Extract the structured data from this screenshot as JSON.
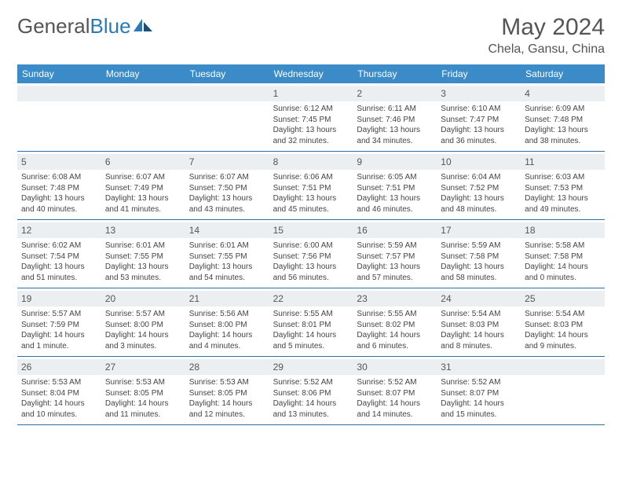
{
  "logo": {
    "text1": "General",
    "text2": "Blue"
  },
  "header": {
    "month": "May 2024",
    "location": "Chela, Gansu, China"
  },
  "colors": {
    "header_bg": "#3b8bc9",
    "header_text": "#ffffff",
    "daynum_bg": "#eceff1",
    "week_border": "#2b6fa3",
    "text": "#444444"
  },
  "dayNames": [
    "Sunday",
    "Monday",
    "Tuesday",
    "Wednesday",
    "Thursday",
    "Friday",
    "Saturday"
  ],
  "weeks": [
    [
      {
        "n": "",
        "lines": []
      },
      {
        "n": "",
        "lines": []
      },
      {
        "n": "",
        "lines": []
      },
      {
        "n": "1",
        "lines": [
          "Sunrise: 6:12 AM",
          "Sunset: 7:45 PM",
          "Daylight: 13 hours and 32 minutes."
        ]
      },
      {
        "n": "2",
        "lines": [
          "Sunrise: 6:11 AM",
          "Sunset: 7:46 PM",
          "Daylight: 13 hours and 34 minutes."
        ]
      },
      {
        "n": "3",
        "lines": [
          "Sunrise: 6:10 AM",
          "Sunset: 7:47 PM",
          "Daylight: 13 hours and 36 minutes."
        ]
      },
      {
        "n": "4",
        "lines": [
          "Sunrise: 6:09 AM",
          "Sunset: 7:48 PM",
          "Daylight: 13 hours and 38 minutes."
        ]
      }
    ],
    [
      {
        "n": "5",
        "lines": [
          "Sunrise: 6:08 AM",
          "Sunset: 7:48 PM",
          "Daylight: 13 hours and 40 minutes."
        ]
      },
      {
        "n": "6",
        "lines": [
          "Sunrise: 6:07 AM",
          "Sunset: 7:49 PM",
          "Daylight: 13 hours and 41 minutes."
        ]
      },
      {
        "n": "7",
        "lines": [
          "Sunrise: 6:07 AM",
          "Sunset: 7:50 PM",
          "Daylight: 13 hours and 43 minutes."
        ]
      },
      {
        "n": "8",
        "lines": [
          "Sunrise: 6:06 AM",
          "Sunset: 7:51 PM",
          "Daylight: 13 hours and 45 minutes."
        ]
      },
      {
        "n": "9",
        "lines": [
          "Sunrise: 6:05 AM",
          "Sunset: 7:51 PM",
          "Daylight: 13 hours and 46 minutes."
        ]
      },
      {
        "n": "10",
        "lines": [
          "Sunrise: 6:04 AM",
          "Sunset: 7:52 PM",
          "Daylight: 13 hours and 48 minutes."
        ]
      },
      {
        "n": "11",
        "lines": [
          "Sunrise: 6:03 AM",
          "Sunset: 7:53 PM",
          "Daylight: 13 hours and 49 minutes."
        ]
      }
    ],
    [
      {
        "n": "12",
        "lines": [
          "Sunrise: 6:02 AM",
          "Sunset: 7:54 PM",
          "Daylight: 13 hours and 51 minutes."
        ]
      },
      {
        "n": "13",
        "lines": [
          "Sunrise: 6:01 AM",
          "Sunset: 7:55 PM",
          "Daylight: 13 hours and 53 minutes."
        ]
      },
      {
        "n": "14",
        "lines": [
          "Sunrise: 6:01 AM",
          "Sunset: 7:55 PM",
          "Daylight: 13 hours and 54 minutes."
        ]
      },
      {
        "n": "15",
        "lines": [
          "Sunrise: 6:00 AM",
          "Sunset: 7:56 PM",
          "Daylight: 13 hours and 56 minutes."
        ]
      },
      {
        "n": "16",
        "lines": [
          "Sunrise: 5:59 AM",
          "Sunset: 7:57 PM",
          "Daylight: 13 hours and 57 minutes."
        ]
      },
      {
        "n": "17",
        "lines": [
          "Sunrise: 5:59 AM",
          "Sunset: 7:58 PM",
          "Daylight: 13 hours and 58 minutes."
        ]
      },
      {
        "n": "18",
        "lines": [
          "Sunrise: 5:58 AM",
          "Sunset: 7:58 PM",
          "Daylight: 14 hours and 0 minutes."
        ]
      }
    ],
    [
      {
        "n": "19",
        "lines": [
          "Sunrise: 5:57 AM",
          "Sunset: 7:59 PM",
          "Daylight: 14 hours and 1 minute."
        ]
      },
      {
        "n": "20",
        "lines": [
          "Sunrise: 5:57 AM",
          "Sunset: 8:00 PM",
          "Daylight: 14 hours and 3 minutes."
        ]
      },
      {
        "n": "21",
        "lines": [
          "Sunrise: 5:56 AM",
          "Sunset: 8:00 PM",
          "Daylight: 14 hours and 4 minutes."
        ]
      },
      {
        "n": "22",
        "lines": [
          "Sunrise: 5:55 AM",
          "Sunset: 8:01 PM",
          "Daylight: 14 hours and 5 minutes."
        ]
      },
      {
        "n": "23",
        "lines": [
          "Sunrise: 5:55 AM",
          "Sunset: 8:02 PM",
          "Daylight: 14 hours and 6 minutes."
        ]
      },
      {
        "n": "24",
        "lines": [
          "Sunrise: 5:54 AM",
          "Sunset: 8:03 PM",
          "Daylight: 14 hours and 8 minutes."
        ]
      },
      {
        "n": "25",
        "lines": [
          "Sunrise: 5:54 AM",
          "Sunset: 8:03 PM",
          "Daylight: 14 hours and 9 minutes."
        ]
      }
    ],
    [
      {
        "n": "26",
        "lines": [
          "Sunrise: 5:53 AM",
          "Sunset: 8:04 PM",
          "Daylight: 14 hours and 10 minutes."
        ]
      },
      {
        "n": "27",
        "lines": [
          "Sunrise: 5:53 AM",
          "Sunset: 8:05 PM",
          "Daylight: 14 hours and 11 minutes."
        ]
      },
      {
        "n": "28",
        "lines": [
          "Sunrise: 5:53 AM",
          "Sunset: 8:05 PM",
          "Daylight: 14 hours and 12 minutes."
        ]
      },
      {
        "n": "29",
        "lines": [
          "Sunrise: 5:52 AM",
          "Sunset: 8:06 PM",
          "Daylight: 14 hours and 13 minutes."
        ]
      },
      {
        "n": "30",
        "lines": [
          "Sunrise: 5:52 AM",
          "Sunset: 8:07 PM",
          "Daylight: 14 hours and 14 minutes."
        ]
      },
      {
        "n": "31",
        "lines": [
          "Sunrise: 5:52 AM",
          "Sunset: 8:07 PM",
          "Daylight: 14 hours and 15 minutes."
        ]
      },
      {
        "n": "",
        "lines": []
      }
    ]
  ]
}
